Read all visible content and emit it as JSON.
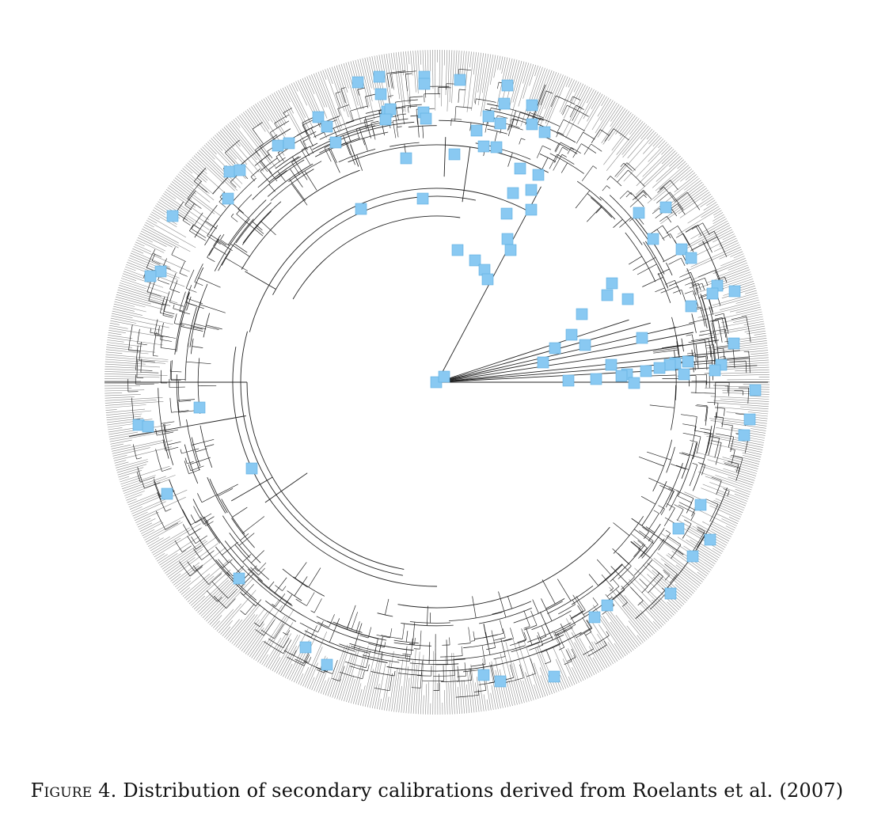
{
  "figure": {
    "label": "Figure 4.",
    "caption": "Distribution of secondary calibrations derived from Roelants et al. (2007)"
  },
  "style": {
    "branch_color": "#222222",
    "tip_color": "#8a8a8a",
    "marker_color": "#89c9f2",
    "marker_stroke": "#5aaee0",
    "background": "#ffffff"
  },
  "tree": {
    "layout": "circular",
    "marker_shape": "square",
    "marker_meaning": "secondary calibration node"
  }
}
